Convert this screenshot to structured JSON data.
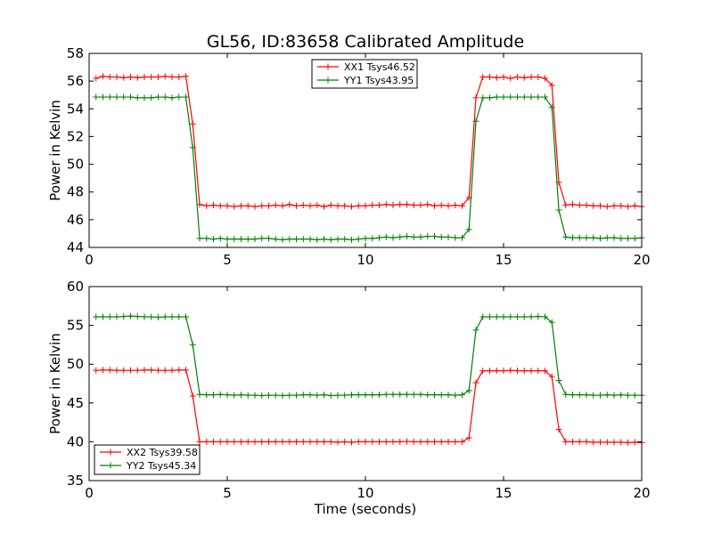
{
  "title": "GL56, ID:83658 Calibrated Amplitude",
  "chart_data": [
    {
      "type": "line",
      "xlabel": "",
      "ylabel": "Power in Kelvin",
      "xlim": [
        0,
        20
      ],
      "ylim": [
        44,
        58
      ],
      "xticks": [
        0,
        5,
        10,
        15,
        20
      ],
      "yticks": [
        44,
        46,
        48,
        50,
        52,
        54,
        56,
        58
      ],
      "grid": false,
      "legend_position": "top-center",
      "series": [
        {
          "name": "XX1 Tsys46.52",
          "color": "#ff0000",
          "x": [
            0.25,
            0.5,
            0.75,
            1.0,
            1.25,
            1.5,
            1.75,
            2.0,
            2.25,
            2.5,
            2.75,
            3.0,
            3.25,
            3.5,
            3.75,
            4.0,
            4.25,
            4.5,
            4.75,
            5.0,
            5.25,
            5.5,
            5.75,
            6.0,
            6.25,
            6.5,
            6.75,
            7.0,
            7.25,
            7.5,
            7.75,
            8.0,
            8.25,
            8.5,
            8.75,
            9.0,
            9.25,
            9.5,
            9.75,
            10.0,
            10.25,
            10.5,
            10.75,
            11.0,
            11.25,
            11.5,
            11.75,
            12.0,
            12.25,
            12.5,
            12.75,
            13.0,
            13.25,
            13.5,
            13.75,
            14.0,
            14.25,
            14.5,
            14.75,
            15.0,
            15.25,
            15.5,
            15.75,
            16.0,
            16.25,
            16.5,
            16.75,
            17.0,
            17.25,
            17.5,
            17.75,
            18.0,
            18.25,
            18.5,
            18.75,
            19.0,
            19.25,
            19.5,
            19.75,
            20.0
          ],
          "y": [
            56.2,
            56.35,
            56.3,
            56.3,
            56.25,
            56.3,
            56.25,
            56.3,
            56.3,
            56.3,
            56.35,
            56.3,
            56.3,
            56.35,
            52.9,
            47.1,
            47.0,
            47.05,
            47.0,
            47.0,
            46.95,
            47.0,
            47.0,
            46.95,
            47.0,
            47.0,
            47.05,
            47.0,
            47.1,
            47.0,
            47.05,
            47.0,
            47.05,
            46.95,
            47.05,
            47.0,
            47.0,
            46.95,
            47.0,
            47.0,
            47.05,
            47.05,
            47.1,
            47.05,
            47.1,
            47.1,
            47.05,
            47.05,
            47.1,
            47.0,
            47.05,
            47.0,
            47.05,
            47.0,
            47.6,
            54.8,
            56.3,
            56.3,
            56.25,
            56.3,
            56.2,
            56.3,
            56.25,
            56.3,
            56.3,
            56.2,
            55.7,
            48.7,
            47.05,
            47.1,
            47.05,
            47.05,
            47.0,
            47.0,
            46.95,
            47.0,
            47.0,
            46.95,
            47.0,
            46.95
          ]
        },
        {
          "name": "YY1 Tsys43.95",
          "color": "#008000",
          "x": [
            0.25,
            0.5,
            0.75,
            1.0,
            1.25,
            1.5,
            1.75,
            2.0,
            2.25,
            2.5,
            2.75,
            3.0,
            3.25,
            3.5,
            3.75,
            4.0,
            4.25,
            4.5,
            4.75,
            5.0,
            5.25,
            5.5,
            5.75,
            6.0,
            6.25,
            6.5,
            6.75,
            7.0,
            7.25,
            7.5,
            7.75,
            8.0,
            8.25,
            8.5,
            8.75,
            9.0,
            9.25,
            9.5,
            9.75,
            10.0,
            10.25,
            10.5,
            10.75,
            11.0,
            11.25,
            11.5,
            11.75,
            12.0,
            12.25,
            12.5,
            12.75,
            13.0,
            13.25,
            13.5,
            13.75,
            14.0,
            14.25,
            14.5,
            14.75,
            15.0,
            15.25,
            15.5,
            15.75,
            16.0,
            16.25,
            16.5,
            16.75,
            17.0,
            17.25,
            17.5,
            17.75,
            18.0,
            18.25,
            18.5,
            18.75,
            19.0,
            19.25,
            19.5,
            19.75,
            20.0
          ],
          "y": [
            54.85,
            54.85,
            54.85,
            54.85,
            54.85,
            54.85,
            54.8,
            54.8,
            54.8,
            54.85,
            54.85,
            54.8,
            54.85,
            54.85,
            51.2,
            44.65,
            44.65,
            44.6,
            44.65,
            44.6,
            44.6,
            44.6,
            44.6,
            44.6,
            44.65,
            44.65,
            44.6,
            44.55,
            44.6,
            44.6,
            44.6,
            44.6,
            44.55,
            44.6,
            44.55,
            44.6,
            44.6,
            44.55,
            44.6,
            44.65,
            44.65,
            44.7,
            44.75,
            44.7,
            44.75,
            44.8,
            44.75,
            44.75,
            44.8,
            44.8,
            44.75,
            44.75,
            44.7,
            44.7,
            45.3,
            53.1,
            54.8,
            54.8,
            54.85,
            54.85,
            54.85,
            54.85,
            54.85,
            54.85,
            54.85,
            54.85,
            54.1,
            46.7,
            44.75,
            44.7,
            44.7,
            44.7,
            44.7,
            44.65,
            44.7,
            44.7,
            44.65,
            44.65,
            44.65,
            44.7
          ]
        }
      ]
    },
    {
      "type": "line",
      "xlabel": "Time (seconds)",
      "ylabel": "Power in Kelvin",
      "xlim": [
        0,
        20
      ],
      "ylim": [
        35,
        60
      ],
      "xticks": [
        0,
        5,
        10,
        15,
        20
      ],
      "yticks": [
        35,
        40,
        45,
        50,
        55,
        60
      ],
      "grid": false,
      "legend_position": "bottom-left",
      "series": [
        {
          "name": "XX2 Tsys39.58",
          "color": "#ff0000",
          "x": [
            0.25,
            0.5,
            0.75,
            1.0,
            1.25,
            1.5,
            1.75,
            2.0,
            2.25,
            2.5,
            2.75,
            3.0,
            3.25,
            3.5,
            3.75,
            4.0,
            4.25,
            4.5,
            4.75,
            5.0,
            5.25,
            5.5,
            5.75,
            6.0,
            6.25,
            6.5,
            6.75,
            7.0,
            7.25,
            7.5,
            7.75,
            8.0,
            8.25,
            8.5,
            8.75,
            9.0,
            9.25,
            9.5,
            9.75,
            10.0,
            10.25,
            10.5,
            10.75,
            11.0,
            11.25,
            11.5,
            11.75,
            12.0,
            12.25,
            12.5,
            12.75,
            13.0,
            13.25,
            13.5,
            13.75,
            14.0,
            14.25,
            14.5,
            14.75,
            15.0,
            15.25,
            15.5,
            15.75,
            16.0,
            16.25,
            16.5,
            16.75,
            17.0,
            17.25,
            17.5,
            17.75,
            18.0,
            18.25,
            18.5,
            18.75,
            19.0,
            19.25,
            19.5,
            19.75,
            20.0
          ],
          "y": [
            49.2,
            49.25,
            49.25,
            49.2,
            49.2,
            49.2,
            49.2,
            49.25,
            49.25,
            49.2,
            49.2,
            49.2,
            49.25,
            49.25,
            45.9,
            40.0,
            40.0,
            40.0,
            40.0,
            40.0,
            40.0,
            40.0,
            40.0,
            40.0,
            40.0,
            40.0,
            40.0,
            40.0,
            40.0,
            40.0,
            40.0,
            40.0,
            40.0,
            40.0,
            40.0,
            39.95,
            40.0,
            39.95,
            40.0,
            40.0,
            40.0,
            40.0,
            40.0,
            40.0,
            40.0,
            40.05,
            40.0,
            40.0,
            40.0,
            40.0,
            40.0,
            40.0,
            40.0,
            40.0,
            40.5,
            47.6,
            49.15,
            49.15,
            49.15,
            49.15,
            49.2,
            49.15,
            49.15,
            49.15,
            49.15,
            49.15,
            48.4,
            41.6,
            40.0,
            40.0,
            40.0,
            40.0,
            39.95,
            39.95,
            39.95,
            39.95,
            39.95,
            39.9,
            39.95,
            39.9
          ]
        },
        {
          "name": "YY2 Tsys45.34",
          "color": "#008000",
          "x": [
            0.25,
            0.5,
            0.75,
            1.0,
            1.25,
            1.5,
            1.75,
            2.0,
            2.25,
            2.5,
            2.75,
            3.0,
            3.25,
            3.5,
            3.75,
            4.0,
            4.25,
            4.5,
            4.75,
            5.0,
            5.25,
            5.5,
            5.75,
            6.0,
            6.25,
            6.5,
            6.75,
            7.0,
            7.25,
            7.5,
            7.75,
            8.0,
            8.25,
            8.5,
            8.75,
            9.0,
            9.25,
            9.5,
            9.75,
            10.0,
            10.25,
            10.5,
            10.75,
            11.0,
            11.25,
            11.5,
            11.75,
            12.0,
            12.25,
            12.5,
            12.75,
            13.0,
            13.25,
            13.5,
            13.75,
            14.0,
            14.25,
            14.5,
            14.75,
            15.0,
            15.25,
            15.5,
            15.75,
            16.0,
            16.25,
            16.5,
            16.75,
            17.0,
            17.25,
            17.5,
            17.75,
            18.0,
            18.25,
            18.5,
            18.75,
            19.0,
            19.25,
            19.5,
            19.75,
            20.0
          ],
          "y": [
            56.1,
            56.1,
            56.1,
            56.1,
            56.15,
            56.2,
            56.15,
            56.1,
            56.1,
            56.05,
            56.1,
            56.1,
            56.1,
            56.1,
            52.5,
            46.1,
            46.05,
            46.05,
            46.1,
            46.05,
            46.0,
            46.05,
            46.0,
            46.0,
            45.95,
            46.0,
            46.0,
            45.95,
            46.0,
            46.0,
            46.05,
            46.05,
            46.0,
            46.05,
            45.95,
            46.0,
            46.0,
            46.05,
            46.05,
            46.05,
            46.05,
            46.05,
            46.1,
            46.1,
            46.1,
            46.1,
            46.1,
            46.1,
            46.05,
            46.05,
            46.05,
            46.05,
            46.0,
            46.05,
            46.6,
            54.4,
            56.1,
            56.1,
            56.1,
            56.1,
            56.1,
            56.1,
            56.1,
            56.1,
            56.15,
            56.1,
            55.4,
            47.9,
            46.1,
            46.05,
            46.05,
            46.05,
            46.0,
            46.0,
            46.05,
            46.0,
            46.05,
            46.0,
            46.0,
            46.0
          ]
        }
      ]
    }
  ]
}
